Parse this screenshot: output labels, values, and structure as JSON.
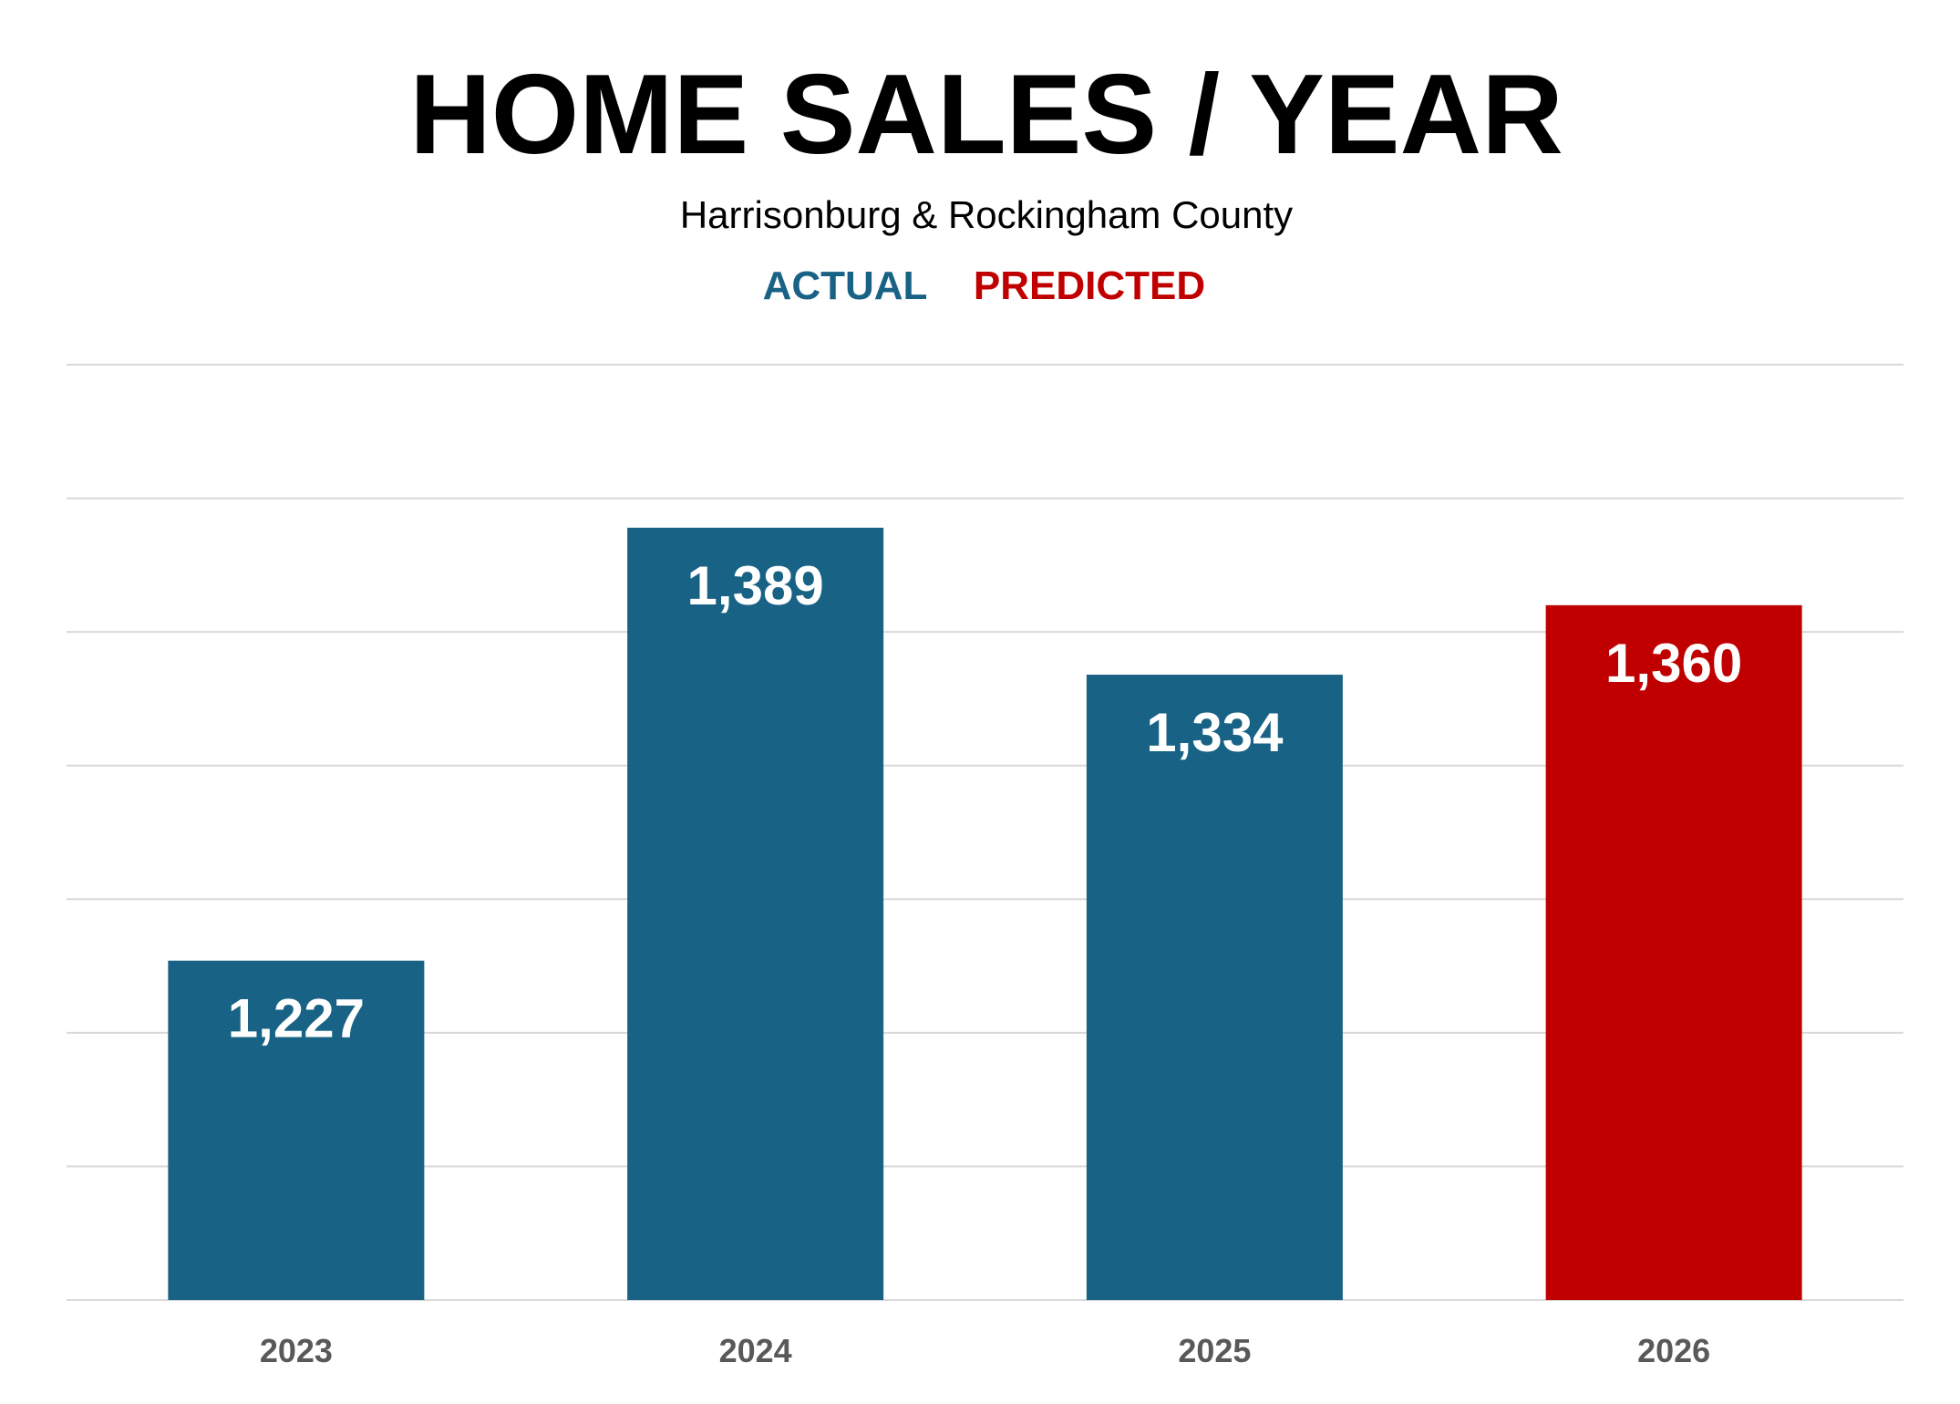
{
  "chart_data": {
    "type": "bar",
    "title": "HOME SALES / YEAR",
    "subtitle": "Harrisonburg & Rockingham County",
    "categories": [
      "2023",
      "2024",
      "2025",
      "2026"
    ],
    "values": [
      1227,
      1389,
      1334,
      1360
    ],
    "value_labels": [
      "1,227",
      "1,389",
      "1,334",
      "1,360"
    ],
    "kinds": [
      "actual",
      "actual",
      "actual",
      "predicted"
    ],
    "legend": [
      {
        "label": "ACTUAL",
        "color": "#186285"
      },
      {
        "label": "PREDICTED",
        "color": "#C00000"
      }
    ],
    "legend_position": "top-center",
    "ylim": [
      1100,
      1450
    ],
    "grid_step": 50,
    "grid": true,
    "y_axis_labels_shown": false,
    "colors": {
      "actual": "#186285",
      "predicted": "#C00000",
      "grid": "#D9D9D9",
      "tick": "#595959"
    }
  }
}
